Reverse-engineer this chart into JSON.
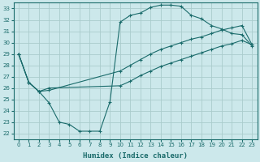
{
  "xlabel": "Humidex (Indice chaleur)",
  "bg_color": "#cce8eb",
  "grid_color": "#aacccc",
  "line_color": "#1a6b6b",
  "xlim": [
    -0.5,
    23.5
  ],
  "ylim": [
    21.5,
    33.5
  ],
  "xticks": [
    0,
    1,
    2,
    3,
    4,
    5,
    6,
    7,
    8,
    9,
    10,
    11,
    12,
    13,
    14,
    15,
    16,
    17,
    18,
    19,
    20,
    21,
    22,
    23
  ],
  "yticks": [
    22,
    23,
    24,
    25,
    26,
    27,
    28,
    29,
    30,
    31,
    32,
    33
  ],
  "curve1_x": [
    0,
    1,
    2,
    3,
    4,
    5,
    6,
    7,
    8,
    9,
    10,
    11,
    12,
    13,
    14,
    15,
    16,
    17,
    18,
    19,
    20,
    21,
    22,
    23
  ],
  "curve1_y": [
    29.0,
    26.5,
    25.7,
    24.7,
    23.0,
    22.8,
    22.2,
    22.2,
    22.2,
    24.8,
    31.8,
    32.4,
    32.6,
    33.1,
    33.3,
    33.3,
    33.2,
    32.4,
    32.1,
    31.5,
    31.2,
    30.8,
    30.7,
    29.7
  ],
  "curve2_x": [
    0,
    1,
    2,
    3,
    10,
    11,
    12,
    13,
    14,
    15,
    16,
    17,
    18,
    19,
    20,
    21,
    22,
    23
  ],
  "curve2_y": [
    29.0,
    26.5,
    25.7,
    25.8,
    27.5,
    28.0,
    28.5,
    29.0,
    29.4,
    29.7,
    30.0,
    30.3,
    30.5,
    30.8,
    31.1,
    31.3,
    31.5,
    29.8
  ],
  "curve3_x": [
    0,
    1,
    2,
    3,
    10,
    11,
    12,
    13,
    14,
    15,
    16,
    17,
    18,
    19,
    20,
    21,
    22,
    23
  ],
  "curve3_y": [
    29.0,
    26.5,
    25.7,
    26.0,
    26.2,
    26.6,
    27.1,
    27.5,
    27.9,
    28.2,
    28.5,
    28.8,
    29.1,
    29.4,
    29.7,
    29.9,
    30.2,
    29.8
  ]
}
